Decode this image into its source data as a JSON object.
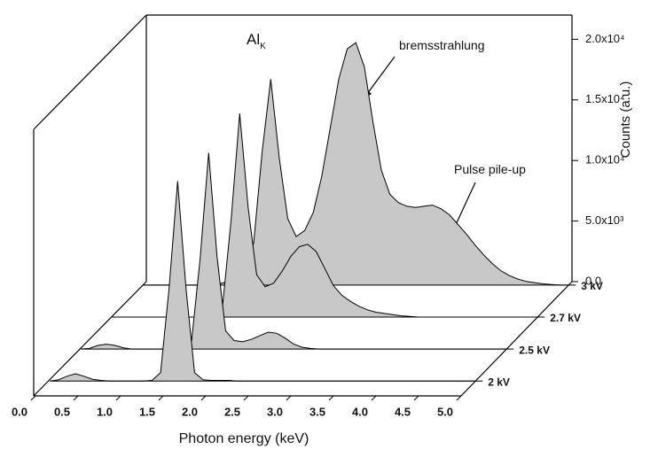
{
  "chart_data": {
    "type": "waterfall",
    "x_label": "Photon energy (keV)",
    "y_label": "Counts (a.u.)",
    "x": [
      0,
      0.1,
      0.2,
      0.3,
      0.4,
      0.5,
      0.6,
      0.7,
      0.8,
      0.9,
      1.0,
      1.1,
      1.2,
      1.3,
      1.4,
      1.5,
      1.6,
      1.7,
      1.8,
      1.9,
      2.0,
      2.1,
      2.2,
      2.3,
      2.4,
      2.5,
      2.6,
      2.7,
      2.8,
      2.9,
      3.0,
      3.1,
      3.2,
      3.3,
      3.4,
      3.5,
      3.6,
      3.7,
      3.8,
      3.9,
      4.0,
      4.1,
      4.2,
      4.3,
      4.4,
      4.5,
      4.6,
      4.7,
      4.8,
      4.9,
      5.0
    ],
    "xlim": [
      0,
      5
    ],
    "xticks": [
      {
        "value": 0,
        "label": "0.0"
      },
      0.5,
      {
        "value": 1,
        "label": "1.0"
      },
      1.5,
      {
        "value": 2,
        "label": "2.0"
      },
      2.5,
      {
        "value": 3,
        "label": "3.0"
      },
      3.5,
      {
        "value": 4,
        "label": "4.0"
      },
      4.5,
      {
        "value": 5,
        "label": "5.0"
      }
    ],
    "ylim": [
      0,
      22000
    ],
    "yticks": [
      {
        "value": 0,
        "label": "0.0"
      },
      {
        "value": 5000,
        "label": "5.0x10³"
      },
      {
        "value": 10000,
        "label": "1.0x10⁴"
      },
      {
        "value": 15000,
        "label": "1.5x10⁴"
      },
      {
        "value": 20000,
        "label": "2.0x10⁴"
      }
    ],
    "series": [
      {
        "name": "2 kV",
        "color": "#c8c8c8",
        "values": [
          0,
          100,
          400,
          600,
          400,
          150,
          50,
          0,
          0,
          0,
          0,
          0,
          50,
          700,
          7600,
          16500,
          7600,
          700,
          100,
          50,
          50,
          50,
          0,
          0,
          0,
          0,
          0,
          0,
          0,
          0,
          0,
          0,
          0,
          0,
          0,
          0,
          0,
          0,
          0,
          0,
          0,
          0,
          0,
          0,
          0,
          0,
          0,
          0,
          0,
          0,
          0
        ]
      },
      {
        "name": "2.5 kV",
        "color": "#c8c8c8",
        "values": [
          0,
          50,
          300,
          400,
          300,
          100,
          0,
          0,
          0,
          0,
          0,
          0,
          50,
          700,
          7400,
          16200,
          7600,
          1500,
          700,
          600,
          800,
          1100,
          1400,
          1300,
          900,
          400,
          150,
          50,
          0,
          0,
          0,
          0,
          0,
          0,
          0,
          0,
          0,
          0,
          0,
          0,
          0,
          0,
          0,
          0,
          0,
          0,
          0,
          0,
          0,
          0,
          0
        ]
      },
      {
        "name": "2.7 kV",
        "color": "#c8c8c8",
        "values": [
          0,
          0,
          0,
          0,
          0,
          0,
          0,
          0,
          0,
          0,
          0,
          50,
          200,
          1000,
          8000,
          16800,
          9000,
          3500,
          2500,
          2800,
          3800,
          5000,
          5800,
          6000,
          5400,
          4000,
          2600,
          1800,
          1300,
          900,
          600,
          400,
          300,
          200,
          100,
          50,
          0,
          0,
          0,
          0,
          0,
          0,
          0,
          0,
          0,
          0,
          0,
          0,
          0,
          0,
          0
        ]
      },
      {
        "name": "3 kV",
        "color": "#c8c8c8",
        "values": [
          0,
          0,
          0,
          0,
          0,
          0,
          0,
          0,
          0,
          100,
          300,
          600,
          1200,
          3500,
          11000,
          17000,
          10500,
          5500,
          4000,
          4500,
          6000,
          9000,
          13000,
          17000,
          19500,
          20000,
          18000,
          13500,
          9500,
          7500,
          6800,
          6500,
          6400,
          6500,
          6600,
          6300,
          5800,
          5000,
          4200,
          3300,
          2500,
          1800,
          1200,
          800,
          500,
          300,
          200,
          100,
          50,
          0,
          0
        ]
      }
    ],
    "annotations": [
      {
        "text": "Al",
        "subscript": "K"
      },
      {
        "text": "bremsstrahlung"
      },
      {
        "text": "Pulse pile-up"
      }
    ]
  }
}
